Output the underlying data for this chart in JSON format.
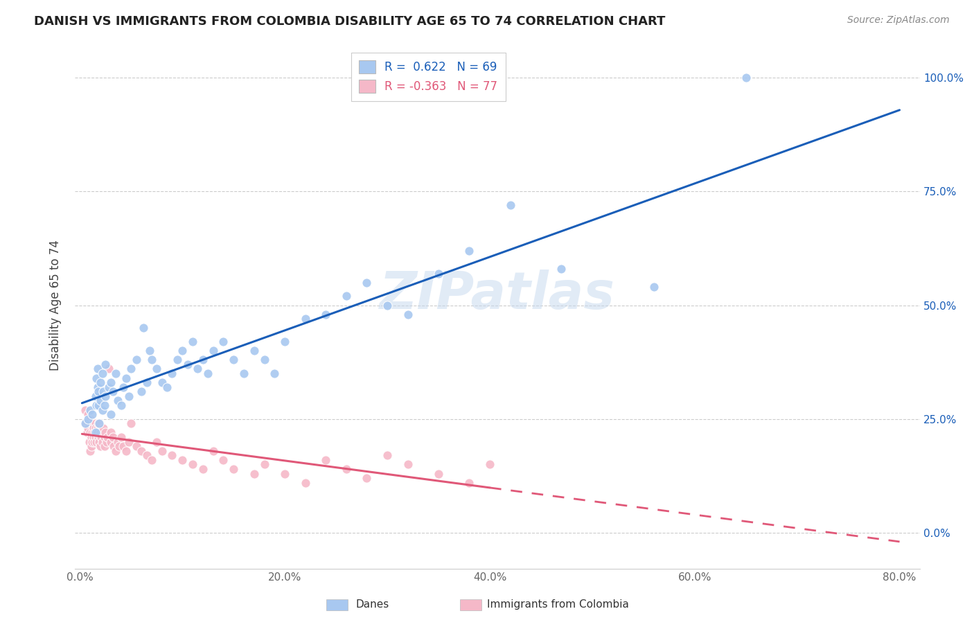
{
  "title": "DANISH VS IMMIGRANTS FROM COLOMBIA DISABILITY AGE 65 TO 74 CORRELATION CHART",
  "source": "Source: ZipAtlas.com",
  "ylabel": "Disability Age 65 to 74",
  "x_tick_labels": [
    "0.0%",
    "20.0%",
    "40.0%",
    "60.0%",
    "80.0%"
  ],
  "x_tick_values": [
    0.0,
    0.2,
    0.4,
    0.6,
    0.8
  ],
  "y_tick_labels": [
    "0.0%",
    "25.0%",
    "50.0%",
    "75.0%",
    "100.0%"
  ],
  "y_tick_values": [
    0.0,
    0.25,
    0.5,
    0.75,
    1.0
  ],
  "xlim": [
    -0.005,
    0.82
  ],
  "ylim": [
    -0.08,
    1.08
  ],
  "danes_R": 0.622,
  "danes_N": 69,
  "colombia_R": -0.363,
  "colombia_N": 77,
  "danes_color": "#a8c8f0",
  "colombia_color": "#f5b8c8",
  "danes_line_color": "#1a5eb8",
  "colombia_line_color": "#e05878",
  "watermark": "ZIPatlas",
  "legend_label_danes": "R =  0.622   N = 69",
  "legend_label_colombia": "R = -0.363   N = 77",
  "bottom_label_danes": "Danes",
  "bottom_label_colombia": "Immigrants from Colombia",
  "danes_x": [
    0.005,
    0.008,
    0.01,
    0.012,
    0.015,
    0.015,
    0.016,
    0.016,
    0.017,
    0.017,
    0.018,
    0.018,
    0.019,
    0.02,
    0.02,
    0.022,
    0.022,
    0.023,
    0.024,
    0.025,
    0.025,
    0.028,
    0.03,
    0.03,
    0.032,
    0.035,
    0.037,
    0.04,
    0.042,
    0.045,
    0.048,
    0.05,
    0.055,
    0.06,
    0.062,
    0.065,
    0.068,
    0.07,
    0.075,
    0.08,
    0.085,
    0.09,
    0.095,
    0.1,
    0.105,
    0.11,
    0.115,
    0.12,
    0.125,
    0.13,
    0.14,
    0.15,
    0.16,
    0.17,
    0.18,
    0.19,
    0.2,
    0.22,
    0.24,
    0.26,
    0.28,
    0.3,
    0.32,
    0.35,
    0.38,
    0.42,
    0.47,
    0.56,
    0.65
  ],
  "danes_y": [
    0.24,
    0.25,
    0.27,
    0.26,
    0.22,
    0.3,
    0.28,
    0.34,
    0.32,
    0.36,
    0.28,
    0.31,
    0.24,
    0.29,
    0.33,
    0.27,
    0.35,
    0.31,
    0.28,
    0.3,
    0.37,
    0.32,
    0.26,
    0.33,
    0.31,
    0.35,
    0.29,
    0.28,
    0.32,
    0.34,
    0.3,
    0.36,
    0.38,
    0.31,
    0.45,
    0.33,
    0.4,
    0.38,
    0.36,
    0.33,
    0.32,
    0.35,
    0.38,
    0.4,
    0.37,
    0.42,
    0.36,
    0.38,
    0.35,
    0.4,
    0.42,
    0.38,
    0.35,
    0.4,
    0.38,
    0.35,
    0.42,
    0.47,
    0.48,
    0.52,
    0.55,
    0.5,
    0.48,
    0.57,
    0.62,
    0.72,
    0.58,
    0.54,
    1.0
  ],
  "colombia_x": [
    0.005,
    0.006,
    0.007,
    0.008,
    0.008,
    0.009,
    0.01,
    0.01,
    0.01,
    0.011,
    0.011,
    0.012,
    0.012,
    0.012,
    0.013,
    0.013,
    0.014,
    0.014,
    0.015,
    0.015,
    0.015,
    0.016,
    0.016,
    0.017,
    0.017,
    0.018,
    0.018,
    0.019,
    0.02,
    0.02,
    0.021,
    0.022,
    0.022,
    0.023,
    0.024,
    0.024,
    0.025,
    0.026,
    0.027,
    0.028,
    0.03,
    0.03,
    0.032,
    0.033,
    0.035,
    0.037,
    0.038,
    0.04,
    0.042,
    0.045,
    0.048,
    0.05,
    0.055,
    0.06,
    0.065,
    0.07,
    0.075,
    0.08,
    0.09,
    0.1,
    0.11,
    0.12,
    0.13,
    0.14,
    0.15,
    0.17,
    0.18,
    0.2,
    0.22,
    0.24,
    0.26,
    0.28,
    0.3,
    0.32,
    0.35,
    0.38,
    0.4
  ],
  "colombia_y": [
    0.27,
    0.24,
    0.22,
    0.26,
    0.23,
    0.2,
    0.18,
    0.25,
    0.22,
    0.21,
    0.19,
    0.24,
    0.22,
    0.2,
    0.23,
    0.21,
    0.22,
    0.2,
    0.24,
    0.23,
    0.21,
    0.22,
    0.2,
    0.23,
    0.22,
    0.24,
    0.21,
    0.2,
    0.22,
    0.19,
    0.21,
    0.22,
    0.2,
    0.23,
    0.21,
    0.19,
    0.22,
    0.2,
    0.21,
    0.36,
    0.22,
    0.2,
    0.21,
    0.19,
    0.18,
    0.2,
    0.19,
    0.21,
    0.19,
    0.18,
    0.2,
    0.24,
    0.19,
    0.18,
    0.17,
    0.16,
    0.2,
    0.18,
    0.17,
    0.16,
    0.15,
    0.14,
    0.18,
    0.16,
    0.14,
    0.13,
    0.15,
    0.13,
    0.11,
    0.16,
    0.14,
    0.12,
    0.17,
    0.15,
    0.13,
    0.11,
    0.15
  ]
}
